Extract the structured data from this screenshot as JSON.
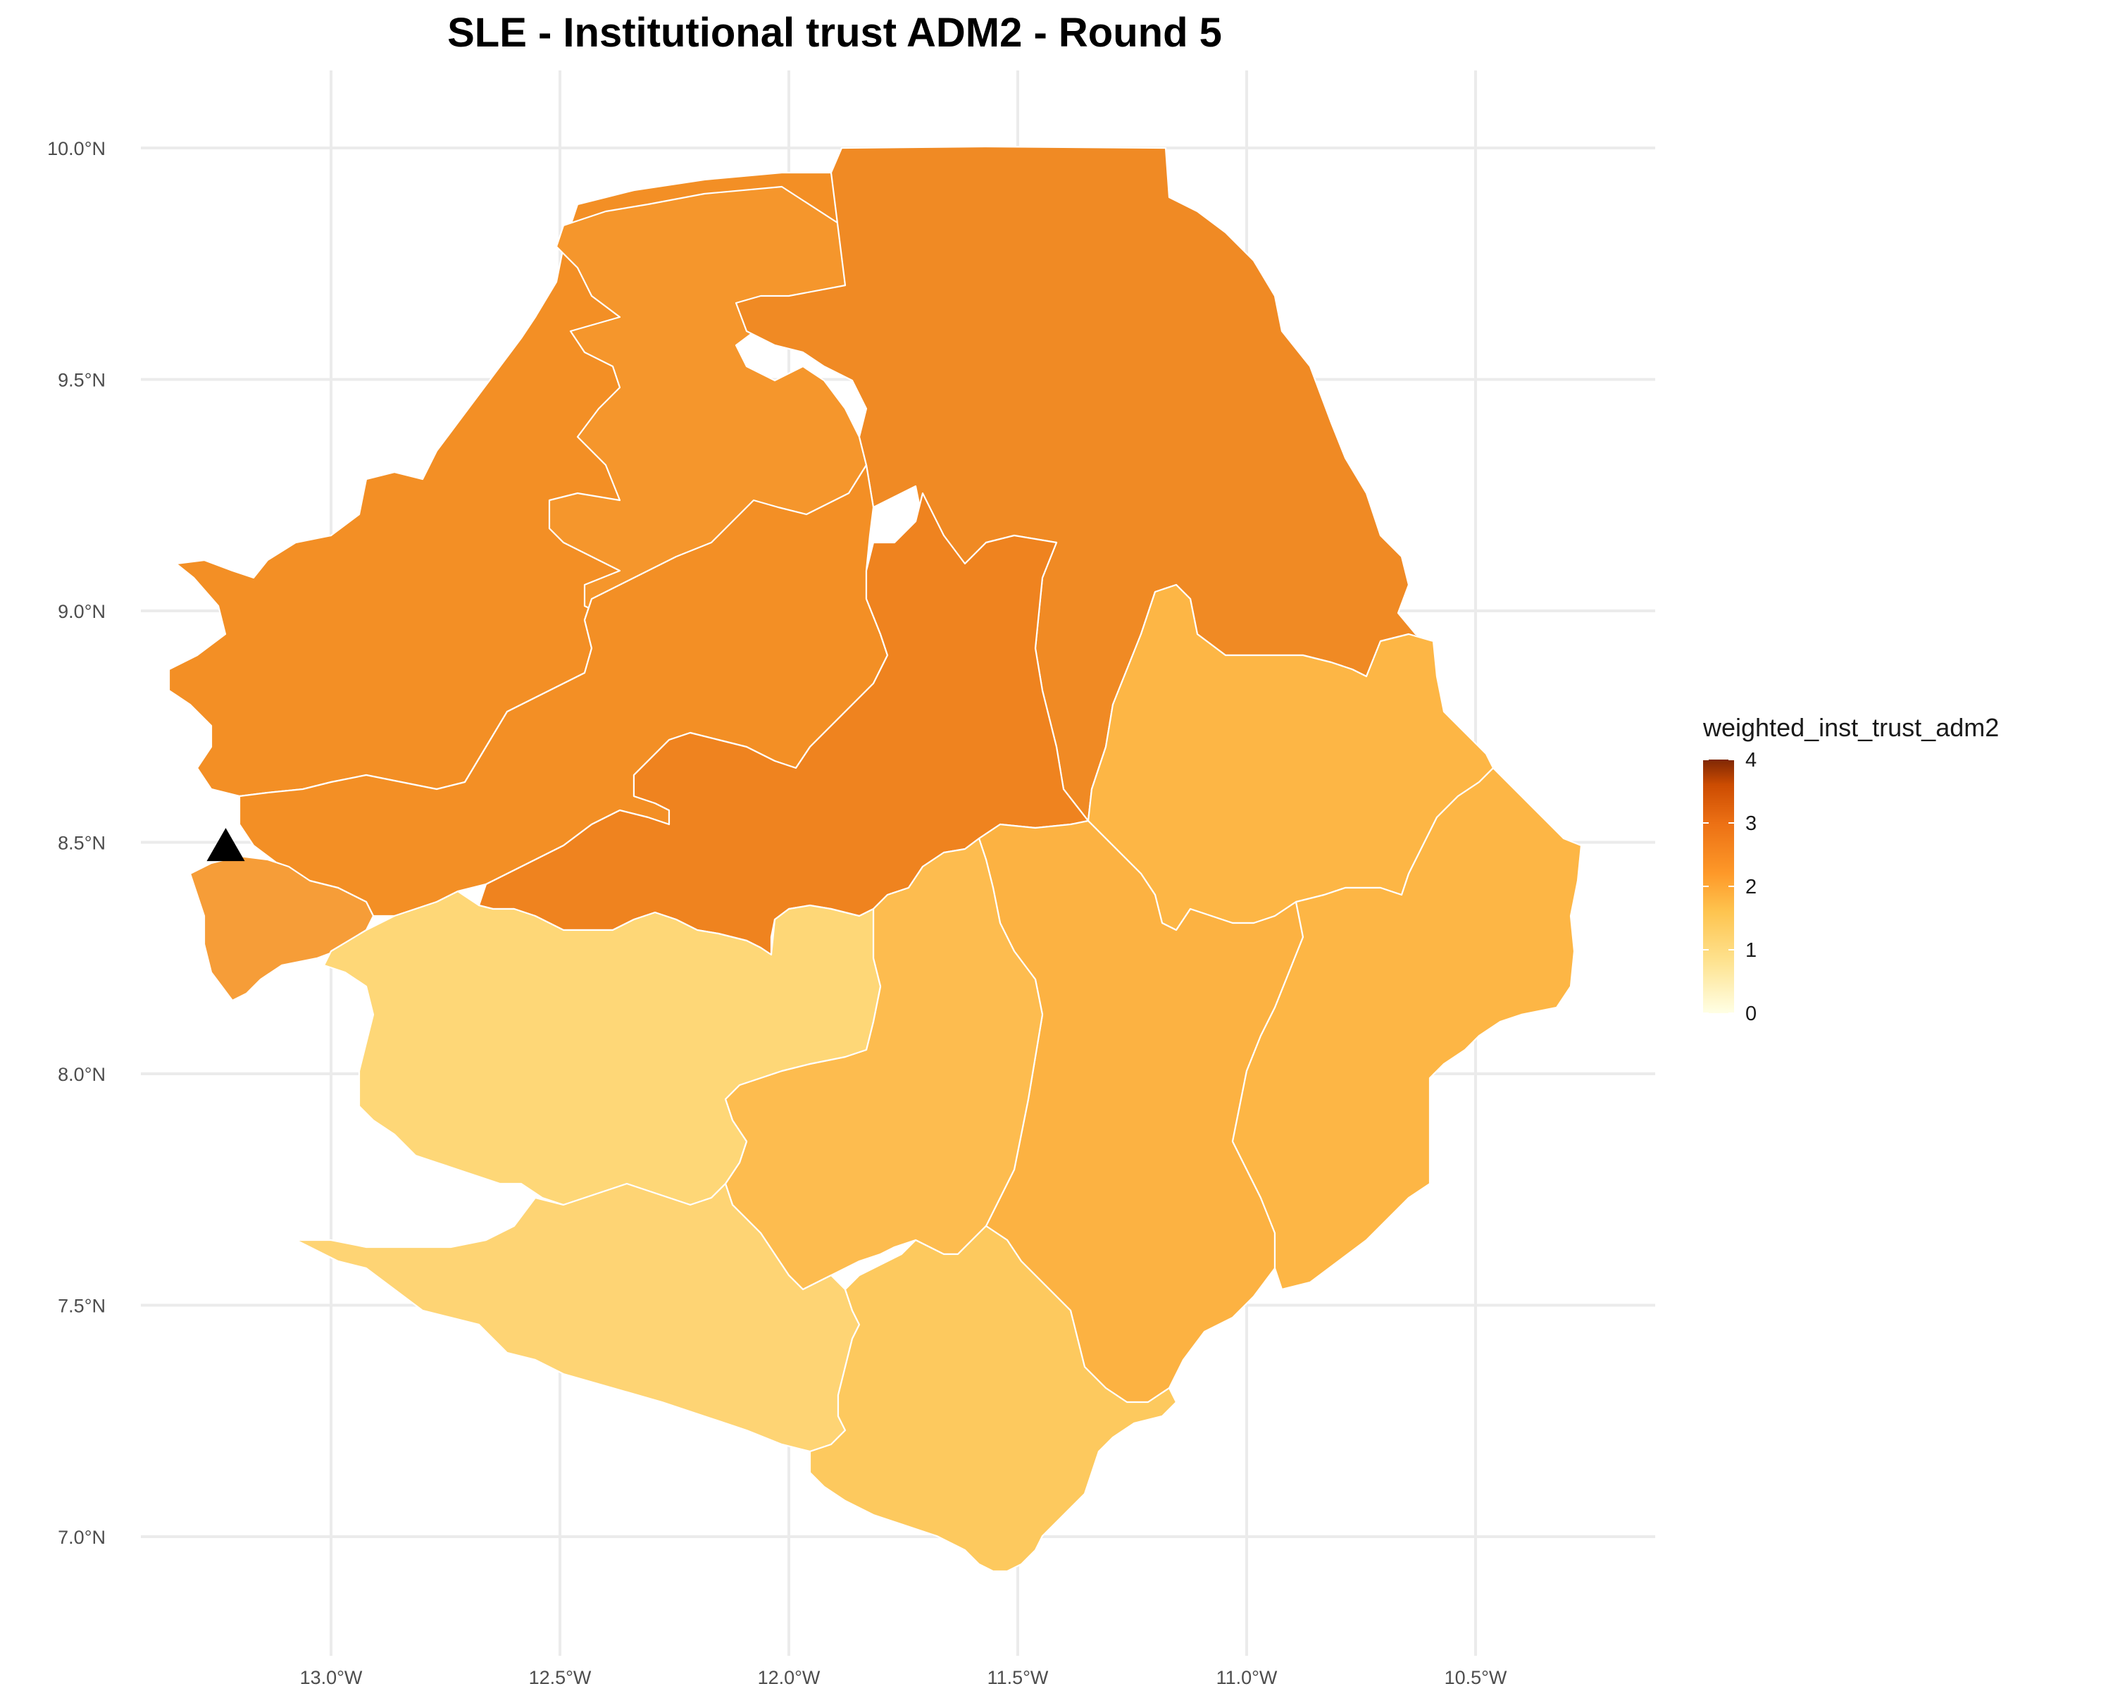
{
  "title": "SLE - Institutional trust ADM2 - Round 5",
  "chart_data": {
    "type": "map",
    "title": "SLE - Institutional trust ADM2 - Round 5",
    "x_axis": {
      "ticks": [
        "13.0°W",
        "12.5°W",
        "12.0°W",
        "11.5°W",
        "11.0°W",
        "10.5°W"
      ],
      "values": [
        -13.0,
        -12.5,
        -12.0,
        -11.5,
        -11.0,
        -10.5
      ]
    },
    "y_axis": {
      "ticks": [
        "10.0°N",
        "9.5°N",
        "9.0°N",
        "8.5°N",
        "8.0°N",
        "7.5°N",
        "7.0°N"
      ],
      "values": [
        10.0,
        9.5,
        9.0,
        8.5,
        8.0,
        7.5,
        7.0
      ]
    },
    "grid": true,
    "legend": {
      "title": "weighted_inst_trust_adm2",
      "placement": "right",
      "scale": "continuous",
      "min": 0,
      "max": 4,
      "ticks": [
        "4",
        "3",
        "2",
        "1",
        "0"
      ],
      "colors": [
        "#7f2704",
        "#d94801",
        "#fd8d3c",
        "#fdae6b",
        "#fee391",
        "#ffffe5"
      ]
    },
    "marker": {
      "shape": "triangle",
      "lon": -13.23,
      "lat": 8.49,
      "color": "#000000"
    },
    "regions": [
      {
        "id": "north-west-upper",
        "value": 2.45,
        "color": "#f38f25"
      },
      {
        "id": "north-central",
        "value": 2.3,
        "color": "#f5962c"
      },
      {
        "id": "north-east",
        "value": 2.55,
        "color": "#f08a24"
      },
      {
        "id": "north-west-lower",
        "value": 2.5,
        "color": "#f38f25"
      },
      {
        "id": "center-belt",
        "value": 2.7,
        "color": "#ef831f"
      },
      {
        "id": "western-area",
        "value": 2.15,
        "color": "#f69d38"
      },
      {
        "id": "east-kono",
        "value": 1.45,
        "color": "#fdb645"
      },
      {
        "id": "east-kenema",
        "value": 1.5,
        "color": "#fcb242"
      },
      {
        "id": "east-kailahun",
        "value": 1.45,
        "color": "#fdb645"
      },
      {
        "id": "south-bo",
        "value": 1.4,
        "color": "#fdbc4f"
      },
      {
        "id": "south-west-moyamba",
        "value": 0.95,
        "color": "#fed777"
      },
      {
        "id": "south-bonthe",
        "value": 1.05,
        "color": "#fed474"
      },
      {
        "id": "south-pujehun",
        "value": 1.2,
        "color": "#fdc95e"
      }
    ]
  }
}
